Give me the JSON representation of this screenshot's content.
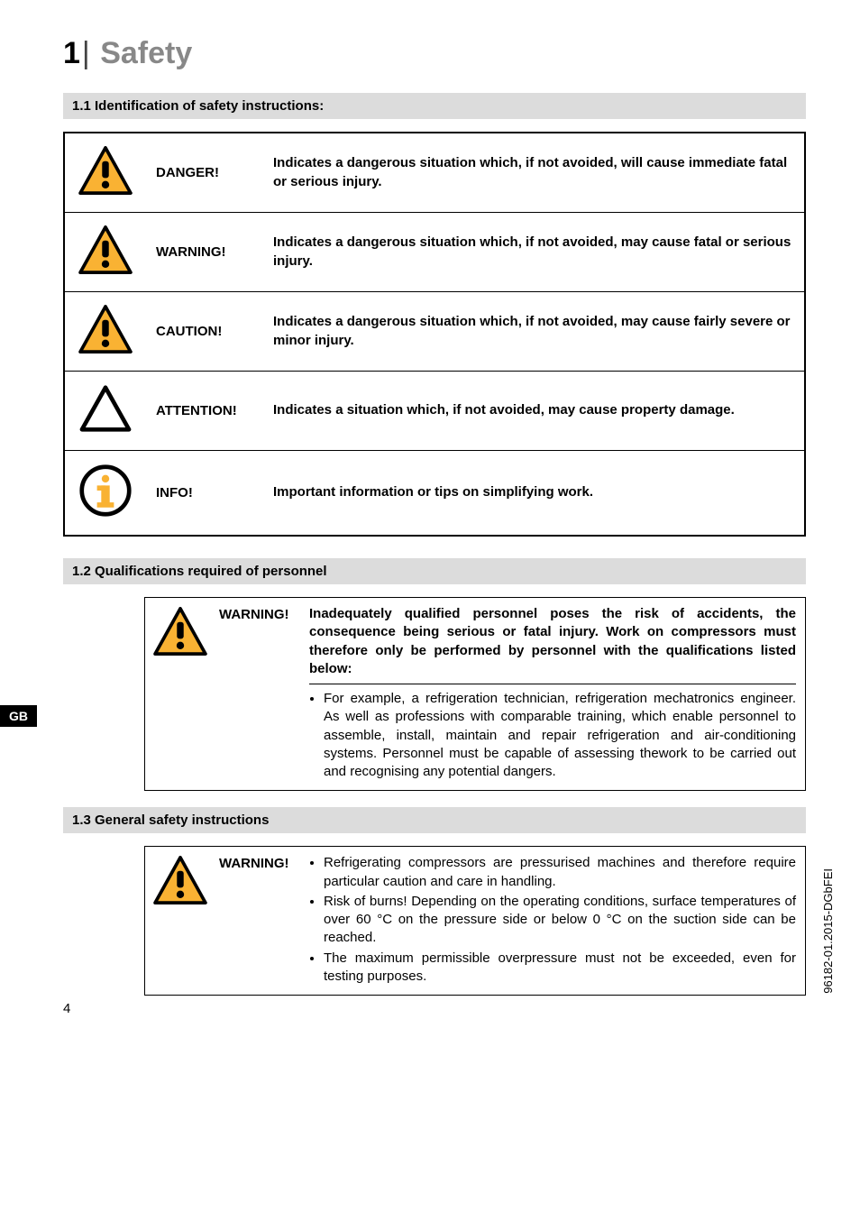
{
  "chapter": {
    "number": "1",
    "separator": "|",
    "word": "Safety"
  },
  "sections": {
    "s11": "1.1  Identification of safety instructions:",
    "s12": "1.2  Qualifications required of personnel",
    "s13": "1.3  General safety instructions"
  },
  "defs": [
    {
      "kind": "warn",
      "label": "DANGER!",
      "desc": "Indicates a dangerous situation which, if not avoided, will cause immediate fatal or serious injury."
    },
    {
      "kind": "warn",
      "label": "WARNING!",
      "desc": "Indicates a dangerous situation which, if not avoided, may cause fatal or serious injury."
    },
    {
      "kind": "warn",
      "label": "CAUTION!",
      "desc": "Indicates a dangerous situation which, if not avoided, may cause fairly severe or minor injury."
    },
    {
      "kind": "attn",
      "label": "ATTENTION!",
      "desc": "Indicates a situation which, if not avoided, may cause property damage."
    },
    {
      "kind": "info",
      "label": "INFO!",
      "desc": "Important information or tips on simplifying work."
    }
  ],
  "tab": "GB",
  "block12": {
    "keyword": "WARNING!",
    "lead": "Inadequately qualified personnel poses the risk of accidents, the consequence being serious or fatal injury. Work on compressors must therefore only be performed by personnel with the qualifications listed below:",
    "bullet": "For example, a refrigeration technician, refrigeration mechatronics engineer. As well as professions with comparable training, which enable personnel to assemble, install, maintain and repair refrigeration and air-conditioning systems. Personnel must be capable of assessing thework to be carried out and recognising any potential dangers."
  },
  "block13": {
    "keyword": "WARNING!",
    "bullets": [
      "Refrigerating compressors are pressurised machines and therefore require particular caution and care in handling.",
      "Risk of burns! Depending on the operating conditions, surface temperatures of over 60 °C on the pressure side or below 0 °C on the suction side can be reached.",
      "The maximum permissible overpressure must not be exceeded, even for testing purposes."
    ]
  },
  "side_code": "96182-01.2015-DGbFEI",
  "page_number": "4",
  "colors": {
    "warn_border": "#000000",
    "warn_fill": "#f9b233",
    "info_fill": "#f9b233"
  }
}
